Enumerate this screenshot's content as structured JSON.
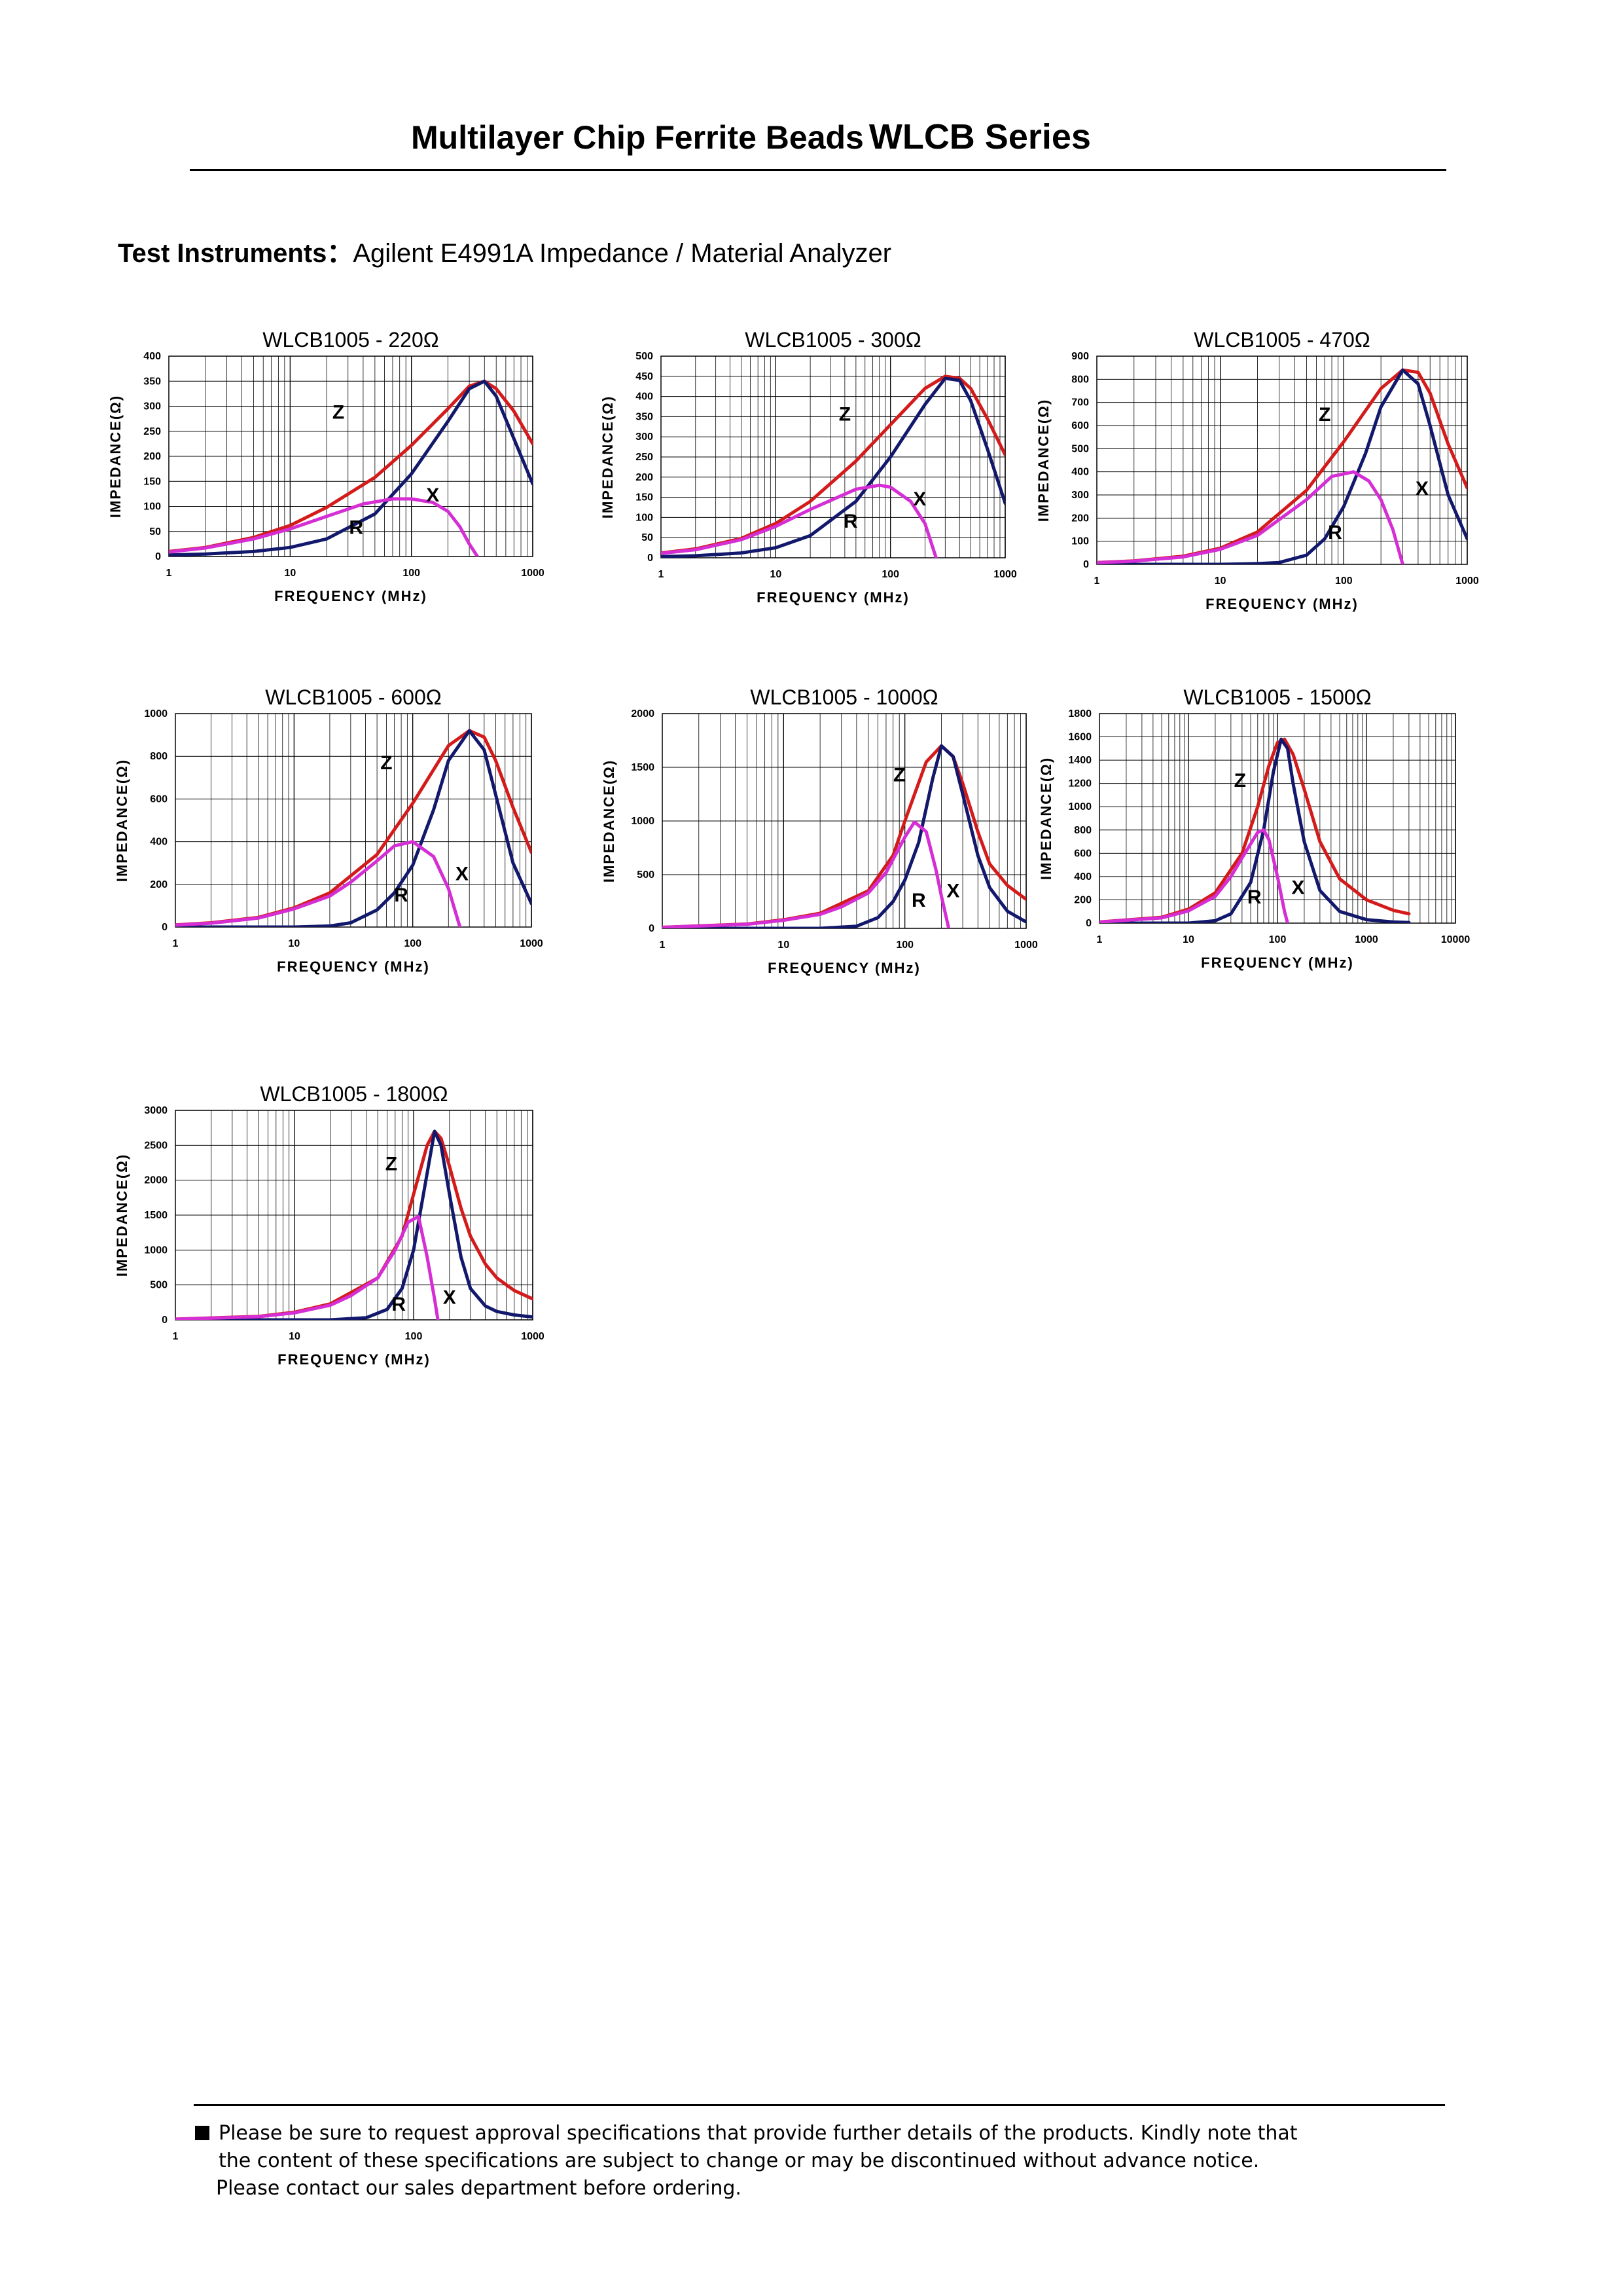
{
  "header": {
    "title": "Multilayer Chip Ferrite Beads",
    "series": "WLCB Series"
  },
  "test_instruments": {
    "label": "Test Instruments：",
    "value": "Agilent E4991A Impedance / Material Analyzer"
  },
  "footer": {
    "line1": "Please be sure to request approval specifications that provide further details of the products.   Kindly note that",
    "line2": "the content of these specifications are subject to change or may be discontinued without advance notice.",
    "line3": "Please contact our sales department before ordering."
  },
  "colors": {
    "Z": "#d41b1b",
    "X": "#12186b",
    "R": "#d42ed4",
    "grid": "#000000"
  },
  "chart_data": [
    {
      "type": "line",
      "title": "WLCB1005 - 220Ω",
      "xlabel": "FREQUENCY (MHz)",
      "ylabel": "IMPEDANCE(Ω)",
      "x_scale": "log",
      "xlim": [
        1,
        1000
      ],
      "ylim": [
        0,
        400
      ],
      "x_ticks": [
        "1",
        "10",
        "100",
        "1000"
      ],
      "y_ticks": [
        "0",
        "50",
        "100",
        "150",
        "200",
        "250",
        "300",
        "350",
        "400"
      ],
      "grid": true,
      "labels": [
        {
          "text": "Z",
          "x": 25,
          "y": 275
        },
        {
          "text": "X",
          "x": 150,
          "y": 110
        },
        {
          "text": "R",
          "x": 35,
          "y": 45
        }
      ],
      "series": [
        {
          "key": "Z",
          "x": [
            1,
            2,
            5,
            10,
            20,
            50,
            100,
            200,
            300,
            400,
            500,
            700,
            1000
          ],
          "y": [
            10,
            18,
            38,
            62,
            98,
            158,
            222,
            295,
            340,
            350,
            335,
            290,
            225
          ]
        },
        {
          "key": "X",
          "x": [
            1,
            2,
            5,
            10,
            20,
            50,
            100,
            200,
            300,
            400,
            500,
            700,
            1000
          ],
          "y": [
            3,
            5,
            10,
            18,
            35,
            85,
            165,
            270,
            335,
            350,
            320,
            235,
            145
          ]
        },
        {
          "key": "R",
          "x": [
            1,
            2,
            5,
            10,
            20,
            40,
            70,
            100,
            150,
            200,
            250,
            300,
            350
          ],
          "y": [
            9,
            17,
            35,
            55,
            80,
            105,
            115,
            115,
            108,
            90,
            60,
            25,
            0
          ]
        }
      ]
    },
    {
      "type": "line",
      "title": "WLCB1005 - 300Ω",
      "xlabel": "FREQUENCY (MHz)",
      "ylabel": "IMPEDANCE(Ω)",
      "x_scale": "log",
      "xlim": [
        1,
        1000
      ],
      "ylim": [
        0,
        500
      ],
      "x_ticks": [
        "1",
        "10",
        "100",
        "1000"
      ],
      "y_ticks": [
        "0",
        "50",
        "100",
        "150",
        "200",
        "250",
        "300",
        "350",
        "400",
        "450",
        "500"
      ],
      "grid": true,
      "labels": [
        {
          "text": "Z",
          "x": 40,
          "y": 340
        },
        {
          "text": "X",
          "x": 180,
          "y": 130
        },
        {
          "text": "R",
          "x": 45,
          "y": 75
        }
      ],
      "series": [
        {
          "key": "Z",
          "x": [
            1,
            2,
            5,
            10,
            20,
            50,
            100,
            200,
            300,
            400,
            500,
            700,
            1000
          ],
          "y": [
            12,
            22,
            48,
            85,
            140,
            240,
            330,
            420,
            450,
            445,
            420,
            345,
            255
          ]
        },
        {
          "key": "X",
          "x": [
            1,
            2,
            5,
            10,
            20,
            50,
            100,
            200,
            300,
            400,
            500,
            700,
            1000
          ],
          "y": [
            3,
            5,
            12,
            25,
            55,
            140,
            250,
            380,
            445,
            440,
            390,
            270,
            135
          ]
        },
        {
          "key": "R",
          "x": [
            1,
            2,
            5,
            10,
            20,
            50,
            80,
            100,
            150,
            200,
            250
          ],
          "y": [
            11,
            20,
            45,
            78,
            120,
            170,
            180,
            175,
            140,
            85,
            0
          ]
        }
      ]
    },
    {
      "type": "line",
      "title": "WLCB1005 - 470Ω",
      "xlabel": "FREQUENCY (MHz)",
      "ylabel": "IMPEDANCE(Ω)",
      "x_scale": "log",
      "xlim": [
        1,
        1000
      ],
      "ylim": [
        0,
        900
      ],
      "x_ticks": [
        "1",
        "10",
        "100",
        "1000"
      ],
      "y_ticks": [
        "0",
        "100",
        "200",
        "300",
        "400",
        "500",
        "600",
        "700",
        "800",
        "900"
      ],
      "grid": true,
      "labels": [
        {
          "text": "Z",
          "x": 70,
          "y": 620
        },
        {
          "text": "X",
          "x": 430,
          "y": 300
        },
        {
          "text": "R",
          "x": 85,
          "y": 110
        }
      ],
      "series": [
        {
          "key": "Z",
          "x": [
            1,
            2,
            5,
            10,
            20,
            50,
            100,
            200,
            300,
            400,
            500,
            700,
            1000
          ],
          "y": [
            8,
            15,
            35,
            70,
            140,
            320,
            530,
            760,
            840,
            830,
            740,
            520,
            330
          ]
        },
        {
          "key": "X",
          "x": [
            1,
            10,
            20,
            30,
            50,
            70,
            100,
            150,
            200,
            300,
            400,
            500,
            700,
            1000
          ],
          "y": [
            0,
            0,
            3,
            8,
            40,
            110,
            250,
            480,
            680,
            840,
            780,
            600,
            300,
            110
          ]
        },
        {
          "key": "R",
          "x": [
            1,
            2,
            5,
            10,
            20,
            50,
            80,
            120,
            160,
            200,
            250,
            300
          ],
          "y": [
            7,
            14,
            32,
            65,
            125,
            280,
            380,
            400,
            360,
            280,
            150,
            0
          ]
        }
      ]
    },
    {
      "type": "line",
      "title": "WLCB1005 - 600Ω",
      "xlabel": "FREQUENCY (MHz)",
      "ylabel": "IMPEDANCE(Ω)",
      "x_scale": "log",
      "xlim": [
        1,
        1000
      ],
      "ylim": [
        0,
        1000
      ],
      "x_ticks": [
        "1",
        "10",
        "100",
        "1000"
      ],
      "y_ticks": [
        "0",
        "200",
        "400",
        "600",
        "800",
        "1000"
      ],
      "grid": true,
      "labels": [
        {
          "text": "Z",
          "x": 60,
          "y": 740
        },
        {
          "text": "X",
          "x": 260,
          "y": 220
        },
        {
          "text": "R",
          "x": 80,
          "y": 120
        }
      ],
      "series": [
        {
          "key": "Z",
          "x": [
            1,
            2,
            5,
            10,
            20,
            50,
            100,
            200,
            300,
            400,
            500,
            700,
            1000
          ],
          "y": [
            10,
            20,
            45,
            90,
            160,
            340,
            580,
            850,
            920,
            890,
            780,
            560,
            350
          ]
        },
        {
          "key": "X",
          "x": [
            1,
            10,
            20,
            30,
            50,
            70,
            100,
            150,
            200,
            300,
            400,
            500,
            700,
            1000
          ],
          "y": [
            0,
            0,
            5,
            20,
            80,
            160,
            290,
            550,
            780,
            920,
            830,
            620,
            300,
            110
          ]
        },
        {
          "key": "R",
          "x": [
            1,
            2,
            5,
            10,
            20,
            30,
            50,
            70,
            100,
            150,
            200,
            250
          ],
          "y": [
            9,
            18,
            42,
            85,
            145,
            210,
            310,
            380,
            400,
            330,
            180,
            0
          ]
        }
      ]
    },
    {
      "type": "line",
      "title": "WLCB1005 - 1000Ω",
      "xlabel": "FREQUENCY (MHz)",
      "ylabel": "IMPEDANCE(Ω)",
      "x_scale": "log",
      "xlim": [
        1,
        1000
      ],
      "ylim": [
        0,
        2000
      ],
      "x_ticks": [
        "1",
        "10",
        "100",
        "1000"
      ],
      "y_ticks": [
        "0",
        "500",
        "1000",
        "1500",
        "2000"
      ],
      "grid": true,
      "labels": [
        {
          "text": "Z",
          "x": 90,
          "y": 1370
        },
        {
          "text": "X",
          "x": 250,
          "y": 290
        },
        {
          "text": "R",
          "x": 130,
          "y": 200
        }
      ],
      "series": [
        {
          "key": "Z",
          "x": [
            1,
            5,
            10,
            20,
            50,
            80,
            100,
            150,
            200,
            250,
            300,
            400,
            500,
            700,
            1000
          ],
          "y": [
            10,
            40,
            80,
            140,
            350,
            680,
            1000,
            1550,
            1700,
            1600,
            1350,
            900,
            600,
            400,
            270
          ]
        },
        {
          "key": "X",
          "x": [
            1,
            20,
            40,
            60,
            80,
            100,
            130,
            170,
            200,
            250,
            300,
            400,
            500,
            700,
            1000
          ],
          "y": [
            0,
            0,
            20,
            100,
            250,
            450,
            800,
            1400,
            1700,
            1600,
            1250,
            680,
            380,
            160,
            60
          ]
        },
        {
          "key": "R",
          "x": [
            1,
            5,
            10,
            20,
            30,
            50,
            70,
            100,
            120,
            150,
            180,
            200,
            230
          ],
          "y": [
            9,
            38,
            75,
            130,
            200,
            330,
            520,
            850,
            990,
            900,
            550,
            300,
            0
          ]
        }
      ]
    },
    {
      "type": "line",
      "title": "WLCB1005 - 1500Ω",
      "xlabel": "FREQUENCY (MHz)",
      "ylabel": "IMPEDANCE(Ω)",
      "x_scale": "log",
      "xlim": [
        1,
        10000
      ],
      "ylim": [
        0,
        1800
      ],
      "x_ticks": [
        "1",
        "10",
        "100",
        "1000",
        "10000"
      ],
      "y_ticks": [
        "0",
        "200",
        "400",
        "600",
        "800",
        "1000",
        "1200",
        "1400",
        "1600",
        "1800"
      ],
      "grid": true,
      "labels": [
        {
          "text": "Z",
          "x": 38,
          "y": 1170
        },
        {
          "text": "X",
          "x": 170,
          "y": 250
        },
        {
          "text": "R",
          "x": 55,
          "y": 170
        }
      ],
      "series": [
        {
          "key": "Z",
          "x": [
            1,
            5,
            10,
            20,
            40,
            60,
            80,
            100,
            120,
            150,
            200,
            300,
            500,
            1000,
            2000,
            3000
          ],
          "y": [
            10,
            50,
            120,
            260,
            600,
            1000,
            1350,
            1550,
            1580,
            1450,
            1150,
            700,
            380,
            200,
            110,
            80
          ]
        },
        {
          "key": "X",
          "x": [
            1,
            10,
            20,
            30,
            50,
            70,
            90,
            110,
            130,
            150,
            200,
            300,
            500,
            1000,
            2000,
            3000
          ],
          "y": [
            0,
            0,
            20,
            80,
            350,
            800,
            1300,
            1580,
            1500,
            1200,
            700,
            280,
            100,
            30,
            10,
            5
          ]
        },
        {
          "key": "R",
          "x": [
            1,
            5,
            10,
            20,
            30,
            40,
            60,
            70,
            80,
            100,
            120,
            130
          ],
          "y": [
            9,
            45,
            105,
            230,
            400,
            560,
            780,
            800,
            720,
            400,
            100,
            0
          ]
        }
      ]
    },
    {
      "type": "line",
      "title": "WLCB1005 - 1800Ω",
      "xlabel": "FREQUENCY (MHz)",
      "ylabel": "IMPEDANCE(Ω)",
      "x_scale": "log",
      "xlim": [
        1,
        1000
      ],
      "ylim": [
        0,
        3000
      ],
      "x_ticks": [
        "1",
        "10",
        "100",
        "1000"
      ],
      "y_ticks": [
        "0",
        "500",
        "1000",
        "1500",
        "2000",
        "2500",
        "3000"
      ],
      "grid": true,
      "labels": [
        {
          "text": "Z",
          "x": 65,
          "y": 2140
        },
        {
          "text": "X",
          "x": 200,
          "y": 230
        },
        {
          "text": "R",
          "x": 75,
          "y": 130
        }
      ],
      "series": [
        {
          "key": "Z",
          "x": [
            1,
            5,
            10,
            20,
            50,
            80,
            100,
            130,
            150,
            170,
            200,
            250,
            300,
            400,
            500,
            700,
            1000
          ],
          "y": [
            10,
            50,
            110,
            230,
            600,
            1200,
            1800,
            2500,
            2700,
            2600,
            2200,
            1600,
            1200,
            800,
            600,
            420,
            300
          ]
        },
        {
          "key": "X",
          "x": [
            1,
            20,
            40,
            60,
            80,
            100,
            130,
            150,
            170,
            200,
            250,
            300,
            400,
            500,
            700,
            1000
          ],
          "y": [
            0,
            0,
            30,
            150,
            450,
            1000,
            2100,
            2700,
            2500,
            1800,
            900,
            450,
            200,
            120,
            70,
            40
          ]
        },
        {
          "key": "R",
          "x": [
            1,
            5,
            10,
            20,
            30,
            50,
            70,
            90,
            110,
            130,
            150,
            160
          ],
          "y": [
            9,
            45,
            100,
            210,
            350,
            600,
            1000,
            1400,
            1480,
            900,
            300,
            0
          ]
        }
      ]
    }
  ]
}
